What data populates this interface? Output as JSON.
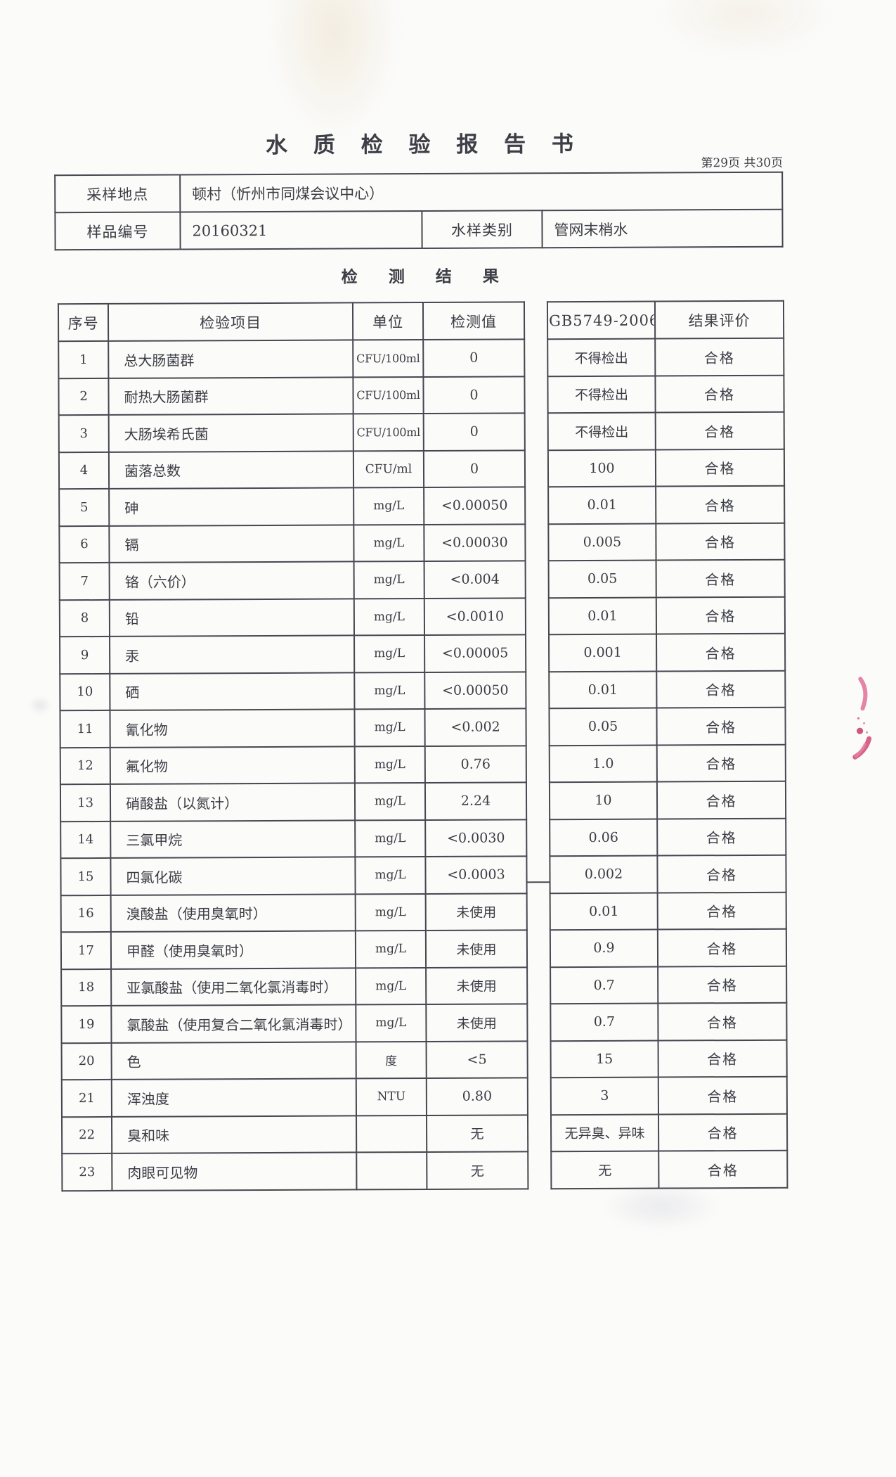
{
  "page": {
    "title": "水 质 检 验 报 告 书",
    "page_info": "第29页 共30页",
    "section_title": "检 测 结 果"
  },
  "sample_info": {
    "location_label": "采样地点",
    "location_value": "顿村（忻州市同煤会议中心）",
    "sample_no_label": "样品编号",
    "sample_no_value": "20160321",
    "water_type_label": "水样类别",
    "water_type_value": "管网末梢水"
  },
  "results_table": {
    "headers": {
      "no": "序号",
      "item": "检验项目",
      "unit": "单位",
      "value": "检测值",
      "standard": "GB5749-2006",
      "evaluation": "结果评价"
    },
    "rows": [
      {
        "no": "1",
        "item": "总大肠菌群",
        "unit": "CFU/100ml",
        "value": "0",
        "standard": "不得检出",
        "evaluation": "合格"
      },
      {
        "no": "2",
        "item": "耐热大肠菌群",
        "unit": "CFU/100ml",
        "value": "0",
        "standard": "不得检出",
        "evaluation": "合格"
      },
      {
        "no": "3",
        "item": "大肠埃希氏菌",
        "unit": "CFU/100ml",
        "value": "0",
        "standard": "不得检出",
        "evaluation": "合格"
      },
      {
        "no": "4",
        "item": "菌落总数",
        "unit": "CFU/ml",
        "value": "0",
        "standard": "100",
        "evaluation": "合格"
      },
      {
        "no": "5",
        "item": "砷",
        "unit": "mg/L",
        "value": "<0.00050",
        "standard": "0.01",
        "evaluation": "合格"
      },
      {
        "no": "6",
        "item": "镉",
        "unit": "mg/L",
        "value": "<0.00030",
        "standard": "0.005",
        "evaluation": "合格"
      },
      {
        "no": "7",
        "item": "铬（六价）",
        "unit": "mg/L",
        "value": "<0.004",
        "standard": "0.05",
        "evaluation": "合格"
      },
      {
        "no": "8",
        "item": "铅",
        "unit": "mg/L",
        "value": "<0.0010",
        "standard": "0.01",
        "evaluation": "合格"
      },
      {
        "no": "9",
        "item": "汞",
        "unit": "mg/L",
        "value": "<0.00005",
        "standard": "0.001",
        "evaluation": "合格"
      },
      {
        "no": "10",
        "item": "硒",
        "unit": "mg/L",
        "value": "<0.00050",
        "standard": "0.01",
        "evaluation": "合格"
      },
      {
        "no": "11",
        "item": "氰化物",
        "unit": "mg/L",
        "value": "<0.002",
        "standard": "0.05",
        "evaluation": "合格"
      },
      {
        "no": "12",
        "item": "氟化物",
        "unit": "mg/L",
        "value": "0.76",
        "standard": "1.0",
        "evaluation": "合格"
      },
      {
        "no": "13",
        "item": "硝酸盐（以氮计）",
        "unit": "mg/L",
        "value": "2.24",
        "standard": "10",
        "evaluation": "合格"
      },
      {
        "no": "14",
        "item": "三氯甲烷",
        "unit": "mg/L",
        "value": "<0.0030",
        "standard": "0.06",
        "evaluation": "合格"
      },
      {
        "no": "15",
        "item": "四氯化碳",
        "unit": "mg/L",
        "value": "<0.0003",
        "standard": "0.002",
        "evaluation": "合格"
      },
      {
        "no": "16",
        "item": "溴酸盐（使用臭氧时）",
        "unit": "mg/L",
        "value": "未使用",
        "standard": "0.01",
        "evaluation": "合格"
      },
      {
        "no": "17",
        "item": "甲醛（使用臭氧时）",
        "unit": "mg/L",
        "value": "未使用",
        "standard": "0.9",
        "evaluation": "合格"
      },
      {
        "no": "18",
        "item": "亚氯酸盐（使用二氧化氯消毒时）",
        "unit": "mg/L",
        "value": "未使用",
        "standard": "0.7",
        "evaluation": "合格"
      },
      {
        "no": "19",
        "item": "氯酸盐（使用复合二氧化氯消毒时）",
        "unit": "mg/L",
        "value": "未使用",
        "standard": "0.7",
        "evaluation": "合格"
      },
      {
        "no": "20",
        "item": "色",
        "unit": "度",
        "value": "<5",
        "standard": "15",
        "evaluation": "合格"
      },
      {
        "no": "21",
        "item": "浑浊度",
        "unit": "NTU",
        "value": "0.80",
        "standard": "3",
        "evaluation": "合格"
      },
      {
        "no": "22",
        "item": "臭和味",
        "unit": "",
        "value": "无",
        "standard": "无异臭、异味",
        "evaluation": "合格"
      },
      {
        "no": "23",
        "item": "肉眼可见物",
        "unit": "",
        "value": "无",
        "standard": "无",
        "evaluation": "合格"
      }
    ]
  },
  "artifacts": {
    "ink_mark_color": "#d4517d",
    "border_color": "#46474f",
    "paper_color": "#fbfbfa"
  }
}
